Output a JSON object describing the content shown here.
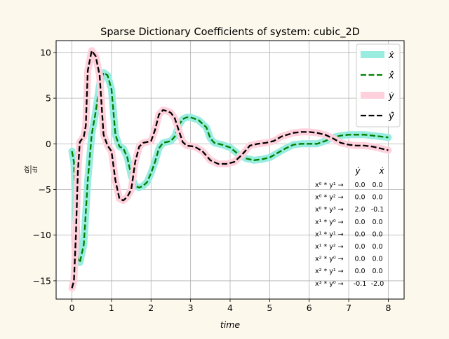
{
  "chart_data": {
    "type": "line",
    "title": "Sparse Dictionary Coefficients of system: cubic_2D",
    "xlabel": "time",
    "ylabel": "dx/dt",
    "xlim": [
      -0.4,
      8.4
    ],
    "ylim": [
      -17,
      11.3
    ],
    "xticks": [
      "0",
      "1",
      "2",
      "3",
      "4",
      "5",
      "6",
      "7",
      "8"
    ],
    "yticks": [
      "10",
      "5",
      "0",
      "−5",
      "−10",
      "−15"
    ],
    "grid": true,
    "legend": {
      "placement": "top-right",
      "entries": [
        "ẋ",
        "x̂̇",
        "ẏ",
        "ŷ̇"
      ]
    },
    "series": [
      {
        "name": "ẋ",
        "color": "#98ece0",
        "style": "solid-thick",
        "points": [
          [
            0.0,
            -0.8
          ],
          [
            0.05,
            -2.0
          ],
          [
            0.1,
            -8.0
          ],
          [
            0.15,
            -12.5
          ],
          [
            0.2,
            -13.0
          ],
          [
            0.3,
            -11.0
          ],
          [
            0.4,
            -4.0
          ],
          [
            0.5,
            1.0
          ],
          [
            0.6,
            3.5
          ],
          [
            0.7,
            6.5
          ],
          [
            0.8,
            7.8
          ],
          [
            0.9,
            7.5
          ],
          [
            1.0,
            6.0
          ],
          [
            1.1,
            1.0
          ],
          [
            1.2,
            -0.3
          ],
          [
            1.3,
            -0.5
          ],
          [
            1.4,
            -1.5
          ],
          [
            1.5,
            -3.5
          ],
          [
            1.6,
            -4.6
          ],
          [
            1.7,
            -4.8
          ],
          [
            1.8,
            -4.6
          ],
          [
            1.9,
            -4.2
          ],
          [
            2.0,
            -3.2
          ],
          [
            2.1,
            -2.0
          ],
          [
            2.2,
            -0.5
          ],
          [
            2.3,
            0.1
          ],
          [
            2.4,
            0.2
          ],
          [
            2.5,
            0.3
          ],
          [
            2.6,
            0.8
          ],
          [
            2.7,
            2.0
          ],
          [
            2.8,
            2.7
          ],
          [
            2.9,
            2.9
          ],
          [
            3.0,
            2.9
          ],
          [
            3.2,
            2.6
          ],
          [
            3.4,
            1.8
          ],
          [
            3.5,
            0.6
          ],
          [
            3.6,
            0.1
          ],
          [
            3.8,
            -0.1
          ],
          [
            4.0,
            -0.4
          ],
          [
            4.2,
            -1.1
          ],
          [
            4.4,
            -1.6
          ],
          [
            4.6,
            -1.8
          ],
          [
            4.8,
            -1.7
          ],
          [
            5.0,
            -1.5
          ],
          [
            5.2,
            -1.0
          ],
          [
            5.4,
            -0.5
          ],
          [
            5.6,
            -0.1
          ],
          [
            5.8,
            0.0
          ],
          [
            6.2,
            0.0
          ],
          [
            6.4,
            0.3
          ],
          [
            6.6,
            0.7
          ],
          [
            6.8,
            0.9
          ],
          [
            7.0,
            1.0
          ],
          [
            7.2,
            1.0
          ],
          [
            7.4,
            1.0
          ],
          [
            7.6,
            0.9
          ],
          [
            7.8,
            0.8
          ],
          [
            8.0,
            0.7
          ]
        ]
      },
      {
        "name": "x̂̇",
        "color": "#008000",
        "style": "dashed",
        "points": [
          [
            0.0,
            -0.8
          ],
          [
            0.05,
            -2.0
          ],
          [
            0.1,
            -8.0
          ],
          [
            0.15,
            -12.5
          ],
          [
            0.2,
            -13.0
          ],
          [
            0.3,
            -11.0
          ],
          [
            0.4,
            -4.0
          ],
          [
            0.5,
            1.0
          ],
          [
            0.6,
            3.5
          ],
          [
            0.7,
            6.5
          ],
          [
            0.8,
            7.8
          ],
          [
            0.9,
            7.5
          ],
          [
            1.0,
            6.0
          ],
          [
            1.1,
            1.0
          ],
          [
            1.2,
            -0.3
          ],
          [
            1.3,
            -0.5
          ],
          [
            1.4,
            -1.5
          ],
          [
            1.5,
            -3.5
          ],
          [
            1.6,
            -4.6
          ],
          [
            1.7,
            -4.8
          ],
          [
            1.8,
            -4.6
          ],
          [
            1.9,
            -4.2
          ],
          [
            2.0,
            -3.2
          ],
          [
            2.1,
            -2.0
          ],
          [
            2.2,
            -0.5
          ],
          [
            2.3,
            0.1
          ],
          [
            2.4,
            0.2
          ],
          [
            2.5,
            0.3
          ],
          [
            2.6,
            0.8
          ],
          [
            2.7,
            2.0
          ],
          [
            2.8,
            2.7
          ],
          [
            2.9,
            2.9
          ],
          [
            3.0,
            2.9
          ],
          [
            3.2,
            2.6
          ],
          [
            3.4,
            1.8
          ],
          [
            3.5,
            0.6
          ],
          [
            3.6,
            0.1
          ],
          [
            3.8,
            -0.1
          ],
          [
            4.0,
            -0.4
          ],
          [
            4.2,
            -1.1
          ],
          [
            4.4,
            -1.6
          ],
          [
            4.6,
            -1.8
          ],
          [
            4.8,
            -1.7
          ],
          [
            5.0,
            -1.5
          ],
          [
            5.2,
            -1.0
          ],
          [
            5.4,
            -0.5
          ],
          [
            5.6,
            -0.1
          ],
          [
            5.8,
            0.0
          ],
          [
            6.2,
            0.0
          ],
          [
            6.4,
            0.3
          ],
          [
            6.6,
            0.7
          ],
          [
            6.8,
            0.9
          ],
          [
            7.0,
            1.0
          ],
          [
            7.2,
            1.0
          ],
          [
            7.4,
            1.0
          ],
          [
            7.6,
            0.9
          ],
          [
            7.8,
            0.8
          ],
          [
            8.0,
            0.7
          ]
        ]
      },
      {
        "name": "ẏ",
        "color": "#ffd1dc",
        "style": "solid-thick",
        "points": [
          [
            0.0,
            -15.8
          ],
          [
            0.05,
            -15.0
          ],
          [
            0.1,
            -10.0
          ],
          [
            0.15,
            -3.0
          ],
          [
            0.2,
            0.2
          ],
          [
            0.3,
            0.8
          ],
          [
            0.35,
            2.0
          ],
          [
            0.4,
            8.0
          ],
          [
            0.5,
            10.2
          ],
          [
            0.6,
            9.6
          ],
          [
            0.7,
            7.5
          ],
          [
            0.8,
            1.0
          ],
          [
            0.9,
            -0.2
          ],
          [
            1.0,
            -0.8
          ],
          [
            1.1,
            -4.0
          ],
          [
            1.2,
            -6.0
          ],
          [
            1.3,
            -6.2
          ],
          [
            1.4,
            -5.8
          ],
          [
            1.5,
            -5.0
          ],
          [
            1.6,
            -2.0
          ],
          [
            1.7,
            -0.3
          ],
          [
            1.8,
            0.1
          ],
          [
            1.9,
            0.2
          ],
          [
            2.0,
            0.3
          ],
          [
            2.1,
            1.5
          ],
          [
            2.2,
            3.2
          ],
          [
            2.3,
            3.7
          ],
          [
            2.4,
            3.6
          ],
          [
            2.5,
            3.4
          ],
          [
            2.6,
            2.8
          ],
          [
            2.7,
            1.5
          ],
          [
            2.8,
            0.2
          ],
          [
            2.9,
            -0.2
          ],
          [
            3.1,
            -0.3
          ],
          [
            3.3,
            -0.8
          ],
          [
            3.5,
            -1.8
          ],
          [
            3.7,
            -2.2
          ],
          [
            3.9,
            -2.2
          ],
          [
            4.1,
            -2.0
          ],
          [
            4.3,
            -1.2
          ],
          [
            4.5,
            -0.2
          ],
          [
            4.7,
            0.0
          ],
          [
            4.9,
            0.1
          ],
          [
            5.1,
            0.3
          ],
          [
            5.3,
            0.8
          ],
          [
            5.6,
            1.2
          ],
          [
            5.8,
            1.3
          ],
          [
            6.0,
            1.3
          ],
          [
            6.2,
            1.2
          ],
          [
            6.4,
            1.0
          ],
          [
            6.6,
            0.6
          ],
          [
            6.8,
            0.1
          ],
          [
            7.0,
            -0.1
          ],
          [
            7.2,
            -0.2
          ],
          [
            7.4,
            -0.2
          ],
          [
            7.6,
            -0.3
          ],
          [
            7.8,
            -0.5
          ],
          [
            8.0,
            -0.7
          ]
        ]
      },
      {
        "name": "ŷ̇",
        "color": "#000000",
        "style": "dashed",
        "points": [
          [
            0.0,
            -15.8
          ],
          [
            0.05,
            -15.0
          ],
          [
            0.1,
            -10.0
          ],
          [
            0.15,
            -3.0
          ],
          [
            0.2,
            0.2
          ],
          [
            0.3,
            0.8
          ],
          [
            0.35,
            2.0
          ],
          [
            0.4,
            8.0
          ],
          [
            0.5,
            10.2
          ],
          [
            0.6,
            9.6
          ],
          [
            0.7,
            7.5
          ],
          [
            0.8,
            1.0
          ],
          [
            0.9,
            -0.2
          ],
          [
            1.0,
            -0.8
          ],
          [
            1.1,
            -4.0
          ],
          [
            1.2,
            -6.0
          ],
          [
            1.3,
            -6.2
          ],
          [
            1.4,
            -5.8
          ],
          [
            1.5,
            -5.0
          ],
          [
            1.6,
            -2.0
          ],
          [
            1.7,
            -0.3
          ],
          [
            1.8,
            0.1
          ],
          [
            1.9,
            0.2
          ],
          [
            2.0,
            0.3
          ],
          [
            2.1,
            1.5
          ],
          [
            2.2,
            3.2
          ],
          [
            2.3,
            3.7
          ],
          [
            2.4,
            3.6
          ],
          [
            2.5,
            3.4
          ],
          [
            2.6,
            2.8
          ],
          [
            2.7,
            1.5
          ],
          [
            2.8,
            0.2
          ],
          [
            2.9,
            -0.2
          ],
          [
            3.1,
            -0.3
          ],
          [
            3.3,
            -0.8
          ],
          [
            3.5,
            -1.8
          ],
          [
            3.7,
            -2.2
          ],
          [
            3.9,
            -2.2
          ],
          [
            4.1,
            -2.0
          ],
          [
            4.3,
            -1.2
          ],
          [
            4.5,
            -0.2
          ],
          [
            4.7,
            0.0
          ],
          [
            4.9,
            0.1
          ],
          [
            5.1,
            0.3
          ],
          [
            5.3,
            0.8
          ],
          [
            5.6,
            1.2
          ],
          [
            5.8,
            1.3
          ],
          [
            6.0,
            1.3
          ],
          [
            6.2,
            1.2
          ],
          [
            6.4,
            1.0
          ],
          [
            6.6,
            0.6
          ],
          [
            6.8,
            0.1
          ],
          [
            7.0,
            -0.1
          ],
          [
            7.2,
            -0.2
          ],
          [
            7.4,
            -0.2
          ],
          [
            7.6,
            -0.3
          ],
          [
            7.8,
            -0.5
          ],
          [
            8.0,
            -0.7
          ]
        ]
      }
    ],
    "coefficient_table": {
      "columns": [
        "ẏ",
        "ẋ"
      ],
      "rows": [
        {
          "term": "x⁰ * y¹ →",
          "y": "0.0",
          "x": "0.0"
        },
        {
          "term": "x⁰ * y² →",
          "y": "0.0",
          "x": "0.0"
        },
        {
          "term": "x⁰ * y³ →",
          "y": "2.0",
          "x": "-0.1"
        },
        {
          "term": "x¹ * y⁰ →",
          "y": "0.0",
          "x": "0.0"
        },
        {
          "term": "x¹ * y¹ →",
          "y": "0.0",
          "x": "0.0"
        },
        {
          "term": "x¹ * y² →",
          "y": "0.0",
          "x": "0.0"
        },
        {
          "term": "x² * y⁰ →",
          "y": "0.0",
          "x": "0.0"
        },
        {
          "term": "x² * y¹ →",
          "y": "0.0",
          "x": "0.0"
        },
        {
          "term": "x³ * y⁰ →",
          "y": "-0.1",
          "x": "-2.0"
        }
      ]
    }
  }
}
